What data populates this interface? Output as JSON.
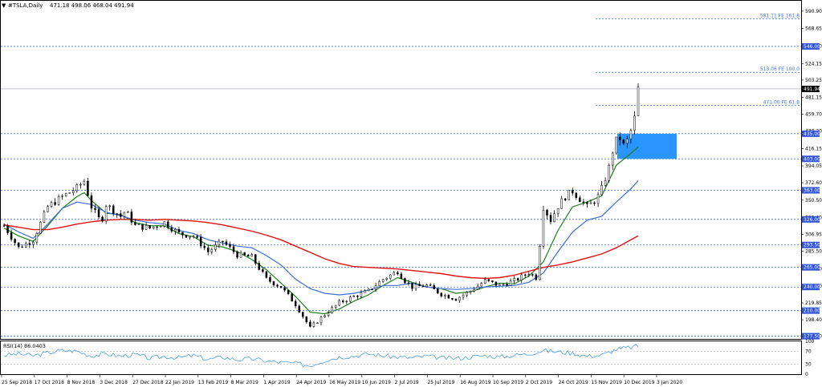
{
  "header": {
    "symbol_title": "#TSLA,Daily",
    "ohlc": "471.18 498.06 468.04 491.94"
  },
  "rsi_header": "RSI(14) 86.0403",
  "colors": {
    "grid_line": "#2d62e3",
    "fib_line": "#3d6fe0",
    "zone_fill": "#1e90ff",
    "ma_fast": "#1a7f1a",
    "ma_mid": "#3a6fd8",
    "ma_slow": "#e01010",
    "rsi_line": "#4a9fe0",
    "candle": "#000000",
    "tag_fill": "#3055d6"
  },
  "chart_data": [
    {
      "type": "candlestick",
      "title": "#TSLA,Daily",
      "ylim": [
        174.0,
        604.0
      ],
      "price_axis_ticks": [
        "590.90",
        "568.65",
        "546.40",
        "524.15",
        "503.25",
        "481.15",
        "459.70",
        "438.20",
        "416.15",
        "394.05",
        "372.60",
        "350.50",
        "328.40",
        "306.95",
        "285.50",
        "263.40",
        "241.30",
        "219.85",
        "198.40",
        "177.50"
      ],
      "horizontal_levels": [
        {
          "value": 546.0,
          "label": "546.00"
        },
        {
          "value": 435.0,
          "label": "435.00"
        },
        {
          "value": 403.0,
          "label": "403.00"
        },
        {
          "value": 363.0,
          "label": "363.00"
        },
        {
          "value": 326.0,
          "label": "326.00"
        },
        {
          "value": 293.5,
          "label": "293.50"
        },
        {
          "value": 265.0,
          "label": "265.00"
        },
        {
          "value": 240.0,
          "label": "240.00"
        },
        {
          "value": 210.0,
          "label": "210.00"
        },
        {
          "value": 177.5,
          "label": "177.50"
        }
      ],
      "current_price": {
        "value": 491.94,
        "label": "491.94"
      },
      "fibonacci_levels": [
        {
          "value": 581.11,
          "label": "581.11 FE 161.8"
        },
        {
          "value": 513.06,
          "label": "513.06 FE 100.0"
        },
        {
          "value": 471.0,
          "label": "471.00 FE 61.8"
        }
      ],
      "zone": {
        "from": 403.0,
        "to": 435.0,
        "start_x": 0.923,
        "end_x": 1.0
      },
      "x_tick_labels": [
        "25 Sep 2018",
        "17 Oct 2018",
        "8 Nov 2018",
        "3 Dec 2018",
        "27 Dec 2018",
        "22 Jan 2019",
        "13 Feb 2019",
        "8 Mar 2019",
        "1 Apr 2019",
        "24 Apr 2019",
        "16 May 2019",
        "10 Jun 2019",
        "2 Jul 2019",
        "25 Jul 2019",
        "16 Aug 2019",
        "10 Sep 2019",
        "2 Oct 2019",
        "24 Oct 2019",
        "15 Nov 2019",
        "10 Dec 2019",
        "3 Jan 2020"
      ],
      "price_path": [
        [
          0,
          318
        ],
        [
          12,
          290
        ],
        [
          24,
          300
        ],
        [
          36,
          342
        ],
        [
          48,
          355
        ],
        [
          60,
          366
        ],
        [
          66,
          375
        ],
        [
          72,
          342
        ],
        [
          80,
          322
        ],
        [
          84,
          345
        ],
        [
          96,
          330
        ],
        [
          100,
          337
        ],
        [
          108,
          318
        ],
        [
          120,
          315
        ],
        [
          132,
          322
        ],
        [
          144,
          308
        ],
        [
          156,
          305
        ],
        [
          168,
          285
        ],
        [
          180,
          298
        ],
        [
          192,
          281
        ],
        [
          204,
          278
        ],
        [
          216,
          250
        ],
        [
          228,
          240
        ],
        [
          240,
          218
        ],
        [
          252,
          188
        ],
        [
          264,
          205
        ],
        [
          276,
          220
        ],
        [
          288,
          228
        ],
        [
          300,
          235
        ],
        [
          312,
          250
        ],
        [
          324,
          260
        ],
        [
          330,
          248
        ],
        [
          336,
          240
        ],
        [
          348,
          242
        ],
        [
          360,
          231
        ],
        [
          372,
          225
        ],
        [
          384,
          235
        ],
        [
          396,
          248
        ],
        [
          408,
          242
        ],
        [
          420,
          248
        ],
        [
          432,
          258
        ],
        [
          438,
          252
        ],
        [
          441,
          295
        ],
        [
          444,
          342
        ],
        [
          450,
          325
        ],
        [
          456,
          343
        ],
        [
          462,
          355
        ],
        [
          468,
          362
        ],
        [
          480,
          342
        ],
        [
          488,
          352
        ],
        [
          492,
          365
        ],
        [
          498,
          392
        ],
        [
          502,
          420
        ],
        [
          506,
          432
        ],
        [
          510,
          420
        ],
        [
          514,
          428
        ],
        [
          520,
          460
        ],
        [
          522,
          492
        ]
      ],
      "series": [
        {
          "name": "ma_fast",
          "points": [
            [
              0,
              315
            ],
            [
              12,
              305
            ],
            [
              24,
              298
            ],
            [
              36,
              318
            ],
            [
              48,
              340
            ],
            [
              60,
              355
            ],
            [
              66,
              360
            ],
            [
              72,
              350
            ],
            [
              84,
              334
            ],
            [
              96,
              332
            ],
            [
              108,
              322
            ],
            [
              120,
              318
            ],
            [
              132,
              318
            ],
            [
              144,
              308
            ],
            [
              156,
              304
            ],
            [
              168,
              293
            ],
            [
              180,
              291
            ],
            [
              192,
              285
            ],
            [
              204,
              275
            ],
            [
              216,
              262
            ],
            [
              228,
              245
            ],
            [
              240,
              228
            ],
            [
              252,
              208
            ],
            [
              264,
              206
            ],
            [
              276,
              212
            ],
            [
              288,
              222
            ],
            [
              300,
              230
            ],
            [
              312,
              242
            ],
            [
              324,
              252
            ],
            [
              336,
              246
            ],
            [
              348,
              240
            ],
            [
              360,
              238
            ],
            [
              372,
              232
            ],
            [
              384,
              234
            ],
            [
              396,
              240
            ],
            [
              408,
              245
            ],
            [
              420,
              244
            ],
            [
              432,
              254
            ],
            [
              444,
              272
            ],
            [
              456,
              312
            ],
            [
              468,
              342
            ],
            [
              480,
              348
            ],
            [
              492,
              356
            ],
            [
              504,
              395
            ],
            [
              516,
              410
            ],
            [
              522,
              418
            ]
          ]
        },
        {
          "name": "ma_mid",
          "points": [
            [
              0,
              320
            ],
            [
              12,
              310
            ],
            [
              24,
              302
            ],
            [
              36,
              320
            ],
            [
              48,
              340
            ],
            [
              60,
              348
            ],
            [
              72,
              345
            ],
            [
              84,
              335
            ],
            [
              96,
              331
            ],
            [
              108,
              325
            ],
            [
              120,
              322
            ],
            [
              132,
              320
            ],
            [
              144,
              312
            ],
            [
              156,
              308
            ],
            [
              168,
              300
            ],
            [
              180,
              296
            ],
            [
              192,
              292
            ],
            [
              204,
              290
            ],
            [
              216,
              280
            ],
            [
              228,
              268
            ],
            [
              240,
              250
            ],
            [
              252,
              238
            ],
            [
              264,
              232
            ],
            [
              276,
              230
            ],
            [
              288,
              232
            ],
            [
              300,
              236
            ],
            [
              312,
              242
            ],
            [
              324,
              242
            ],
            [
              336,
              245
            ],
            [
              348,
              240
            ],
            [
              360,
              238
            ],
            [
              372,
              237
            ],
            [
              384,
              238
            ],
            [
              396,
              240
            ],
            [
              408,
              241
            ],
            [
              420,
              242
            ],
            [
              432,
              246
            ],
            [
              444,
              258
            ],
            [
              456,
              285
            ],
            [
              468,
              310
            ],
            [
              480,
              325
            ],
            [
              492,
              330
            ],
            [
              504,
              348
            ],
            [
              516,
              365
            ],
            [
              522,
              375
            ]
          ]
        },
        {
          "name": "ma_slow",
          "points": [
            [
              0,
              319
            ],
            [
              12,
              316
            ],
            [
              24,
              313
            ],
            [
              36,
              313
            ],
            [
              48,
              316
            ],
            [
              60,
              320
            ],
            [
              72,
              323
            ],
            [
              84,
              325
            ],
            [
              96,
              326
            ],
            [
              108,
              326
            ],
            [
              120,
              325
            ],
            [
              132,
              326
            ],
            [
              144,
              325
            ],
            [
              156,
              324
            ],
            [
              168,
              322
            ],
            [
              180,
              319
            ],
            [
              192,
              315
            ],
            [
              204,
              311
            ],
            [
              216,
              306
            ],
            [
              228,
              300
            ],
            [
              240,
              292
            ],
            [
              252,
              284
            ],
            [
              264,
              276
            ],
            [
              276,
              270
            ],
            [
              288,
              266
            ],
            [
              300,
              265
            ],
            [
              312,
              264
            ],
            [
              324,
              263
            ],
            [
              336,
              261
            ],
            [
              348,
              259
            ],
            [
              360,
              257
            ],
            [
              372,
              254
            ],
            [
              384,
              252
            ],
            [
              396,
              251
            ],
            [
              408,
              252
            ],
            [
              420,
              255
            ],
            [
              432,
              260
            ],
            [
              444,
              265
            ],
            [
              456,
              268
            ],
            [
              468,
              272
            ],
            [
              480,
              277
            ],
            [
              492,
              282
            ],
            [
              504,
              290
            ],
            [
              516,
              300
            ],
            [
              522,
              305
            ]
          ]
        }
      ]
    },
    {
      "type": "line",
      "title": "RSI(14) 86.0403",
      "ylim": [
        0,
        100
      ],
      "y_tick_labels": [
        "100",
        "70",
        "30",
        "0"
      ],
      "levels": [
        70,
        30
      ],
      "series": [
        {
          "name": "RSI(14)",
          "points": [
            [
              0,
              58
            ],
            [
              12,
              62
            ],
            [
              24,
              56
            ],
            [
              36,
              65
            ],
            [
              48,
              72
            ],
            [
              60,
              70
            ],
            [
              72,
              56
            ],
            [
              84,
              62
            ],
            [
              96,
              55
            ],
            [
              108,
              60
            ],
            [
              120,
              48
            ],
            [
              132,
              54
            ],
            [
              144,
              50
            ],
            [
              156,
              57
            ],
            [
              168,
              45
            ],
            [
              180,
              52
            ],
            [
              192,
              44
            ],
            [
              204,
              47
            ],
            [
              216,
              40
            ],
            [
              228,
              36
            ],
            [
              240,
              33
            ],
            [
              252,
              26
            ],
            [
              264,
              42
            ],
            [
              276,
              52
            ],
            [
              288,
              55
            ],
            [
              300,
              62
            ],
            [
              312,
              56
            ],
            [
              324,
              52
            ],
            [
              336,
              50
            ],
            [
              348,
              55
            ],
            [
              360,
              49
            ],
            [
              372,
              48
            ],
            [
              384,
              52
            ],
            [
              396,
              57
            ],
            [
              408,
              52
            ],
            [
              420,
              58
            ],
            [
              432,
              62
            ],
            [
              444,
              72
            ],
            [
              456,
              68
            ],
            [
              468,
              64
            ],
            [
              480,
              55
            ],
            [
              492,
              58
            ],
            [
              504,
              75
            ],
            [
              516,
              82
            ],
            [
              522,
              86
            ]
          ]
        }
      ]
    }
  ]
}
